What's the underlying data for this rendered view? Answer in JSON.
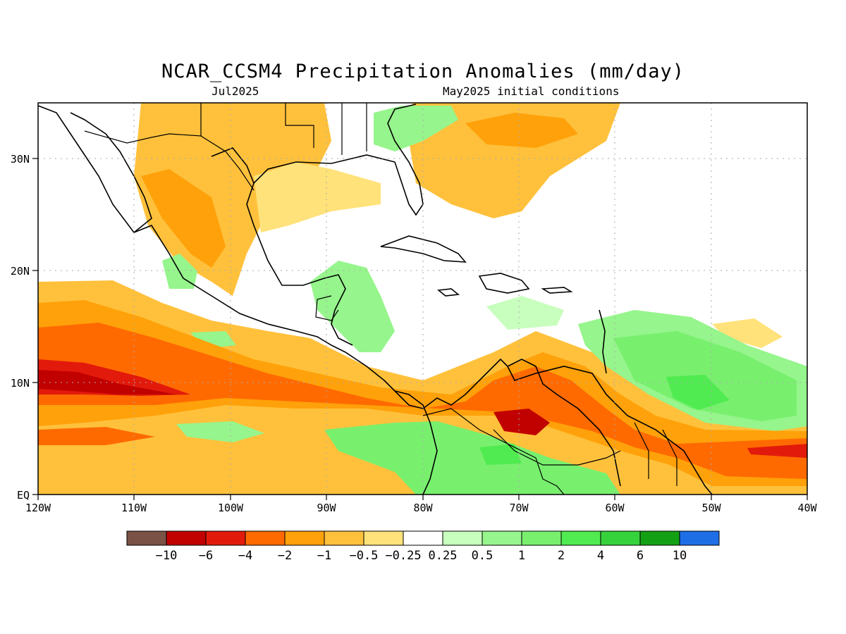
{
  "title": "NCAR_CCSM4 Precipitation Anomalies (mm/day)",
  "valid_month": "Jul2025",
  "init_conditions": "May2025 initial conditions",
  "lat_ticks": [
    "30N",
    "20N",
    "10N",
    "EQ"
  ],
  "lon_ticks": [
    "120W",
    "110W",
    "100W",
    "90W",
    "80W",
    "70W",
    "60W",
    "50W",
    "40W"
  ],
  "colorbar": {
    "colors": [
      "#7a5246",
      "#c10000",
      "#e21a0c",
      "#ff6a00",
      "#ffa10a",
      "#ffc13c",
      "#ffe27a",
      "#ffffff",
      "#c8ffbe",
      "#96f58c",
      "#78f06e",
      "#50eb50",
      "#36d23c",
      "#14a014",
      "#1e6ee6"
    ],
    "labels": [
      "-10",
      "-6",
      "-4",
      "-2",
      "-1",
      "-0.5",
      "-0.25",
      "0.25",
      "0.5",
      "1",
      "2",
      "4",
      "6",
      "10"
    ]
  },
  "icons": {
    "coastlines": "coastline-lines",
    "borders": "border-lines"
  }
}
